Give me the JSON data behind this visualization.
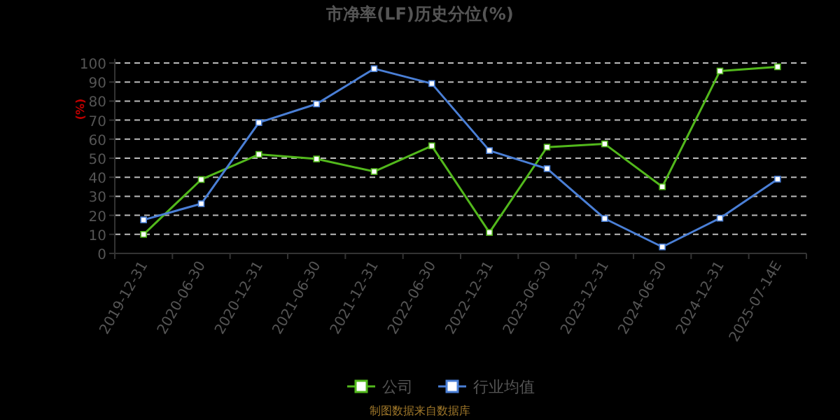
{
  "chart_data": {
    "type": "line",
    "title": "市净率(LF)历史分位(%)",
    "ylabel": "(%)",
    "categories": [
      "2019-12-31",
      "2020-06-30",
      "2020-12-31",
      "2021-06-30",
      "2021-12-31",
      "2022-06-30",
      "2022-12-31",
      "2023-06-30",
      "2023-12-31",
      "2024-06-30",
      "2024-12-31",
      "2025-07-14E"
    ],
    "series": [
      {
        "name": "公司",
        "color": "#52b81c",
        "values": [
          10,
          38.8,
          52,
          49.6,
          43,
          56.5,
          11,
          55.8,
          57.5,
          35,
          95.8,
          98
        ]
      },
      {
        "name": "行业均值",
        "color": "#4a7fd6",
        "values": [
          17.6,
          26.1,
          68.7,
          78.5,
          97,
          89.2,
          54,
          44.5,
          18.3,
          3.4,
          18.5,
          39
        ]
      }
    ],
    "ylim": [
      0,
      100
    ],
    "yticks": [
      0,
      10,
      20,
      30,
      40,
      50,
      60,
      70,
      80,
      90,
      100
    ],
    "grid": "y",
    "legend": "bottom",
    "marker": "square",
    "line_style": "solid",
    "annotations": [
      "制图数据来自数据库"
    ]
  }
}
